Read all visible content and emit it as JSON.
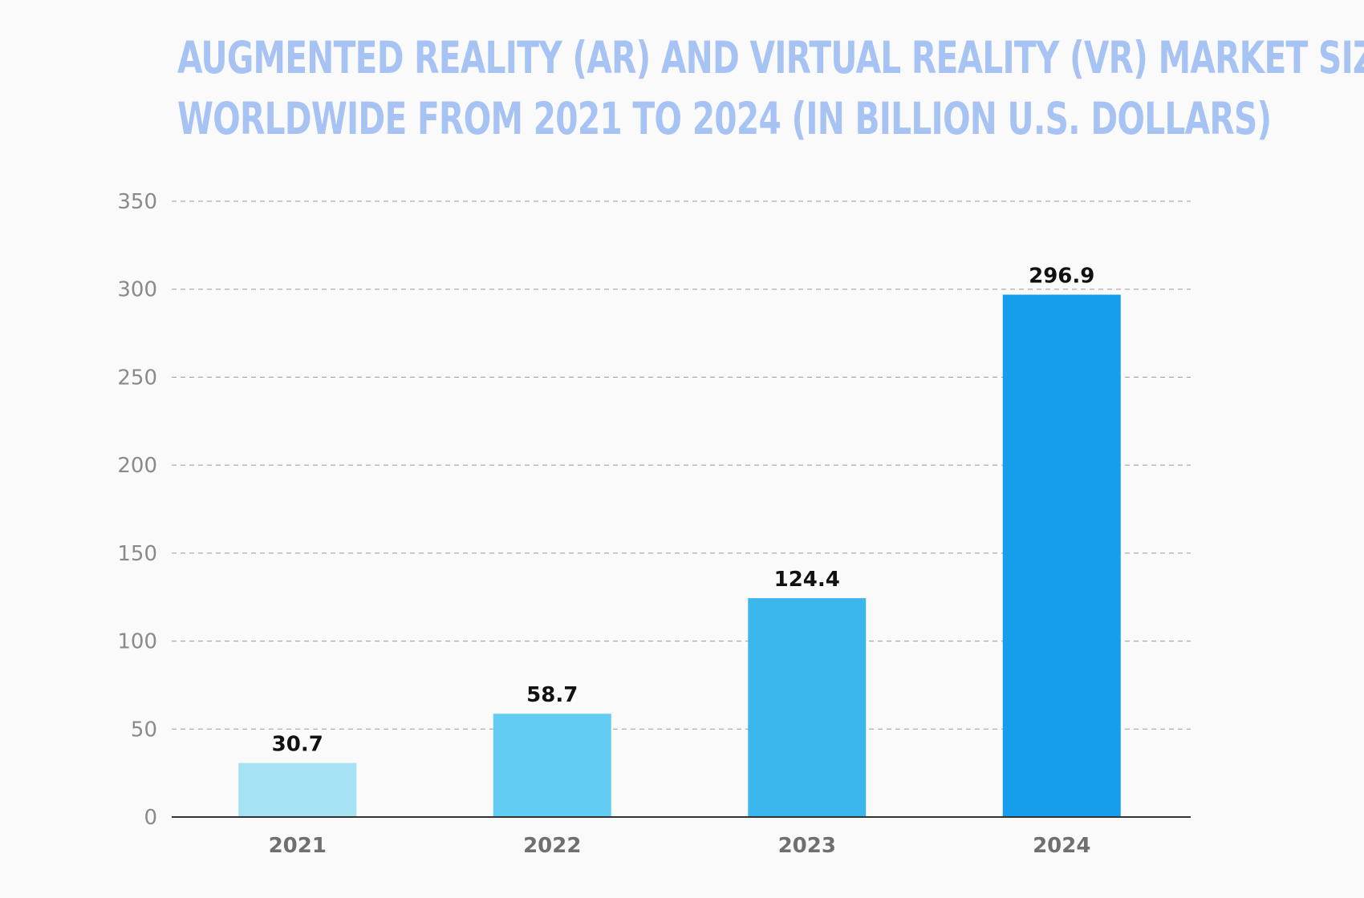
{
  "chart_data": {
    "type": "bar",
    "title": "AUGMENTED REALITY (AR) AND VIRTUAL REALITY (VR) MARKET SIZE WORLDWIDE FROM 2021 TO 2024 (IN BILLION U.S. DOLLARS)",
    "title_lines": [
      "AUGMENTED REALITY (AR) AND VIRTUAL REALITY (VR) MARKET SIZE",
      "WORLDWIDE FROM 2021 TO 2024 (IN BILLION U.S. DOLLARS)"
    ],
    "categories": [
      "2021",
      "2022",
      "2023",
      "2024"
    ],
    "values": [
      30.7,
      58.7,
      124.4,
      296.9
    ],
    "data_labels": [
      "30.7",
      "58.7",
      "124.4",
      "296.9"
    ],
    "bar_colors": [
      "#a6e2f3",
      "#62cdf2",
      "#3bb7ee",
      "#169deb"
    ],
    "xlabel": "",
    "ylabel": "",
    "ylim": [
      0,
      350
    ],
    "y_ticks": [
      0,
      50,
      100,
      150,
      200,
      250,
      300,
      350
    ],
    "grid": "horizontal dashed",
    "legend": "none",
    "title_color": "#a7c3f4"
  }
}
